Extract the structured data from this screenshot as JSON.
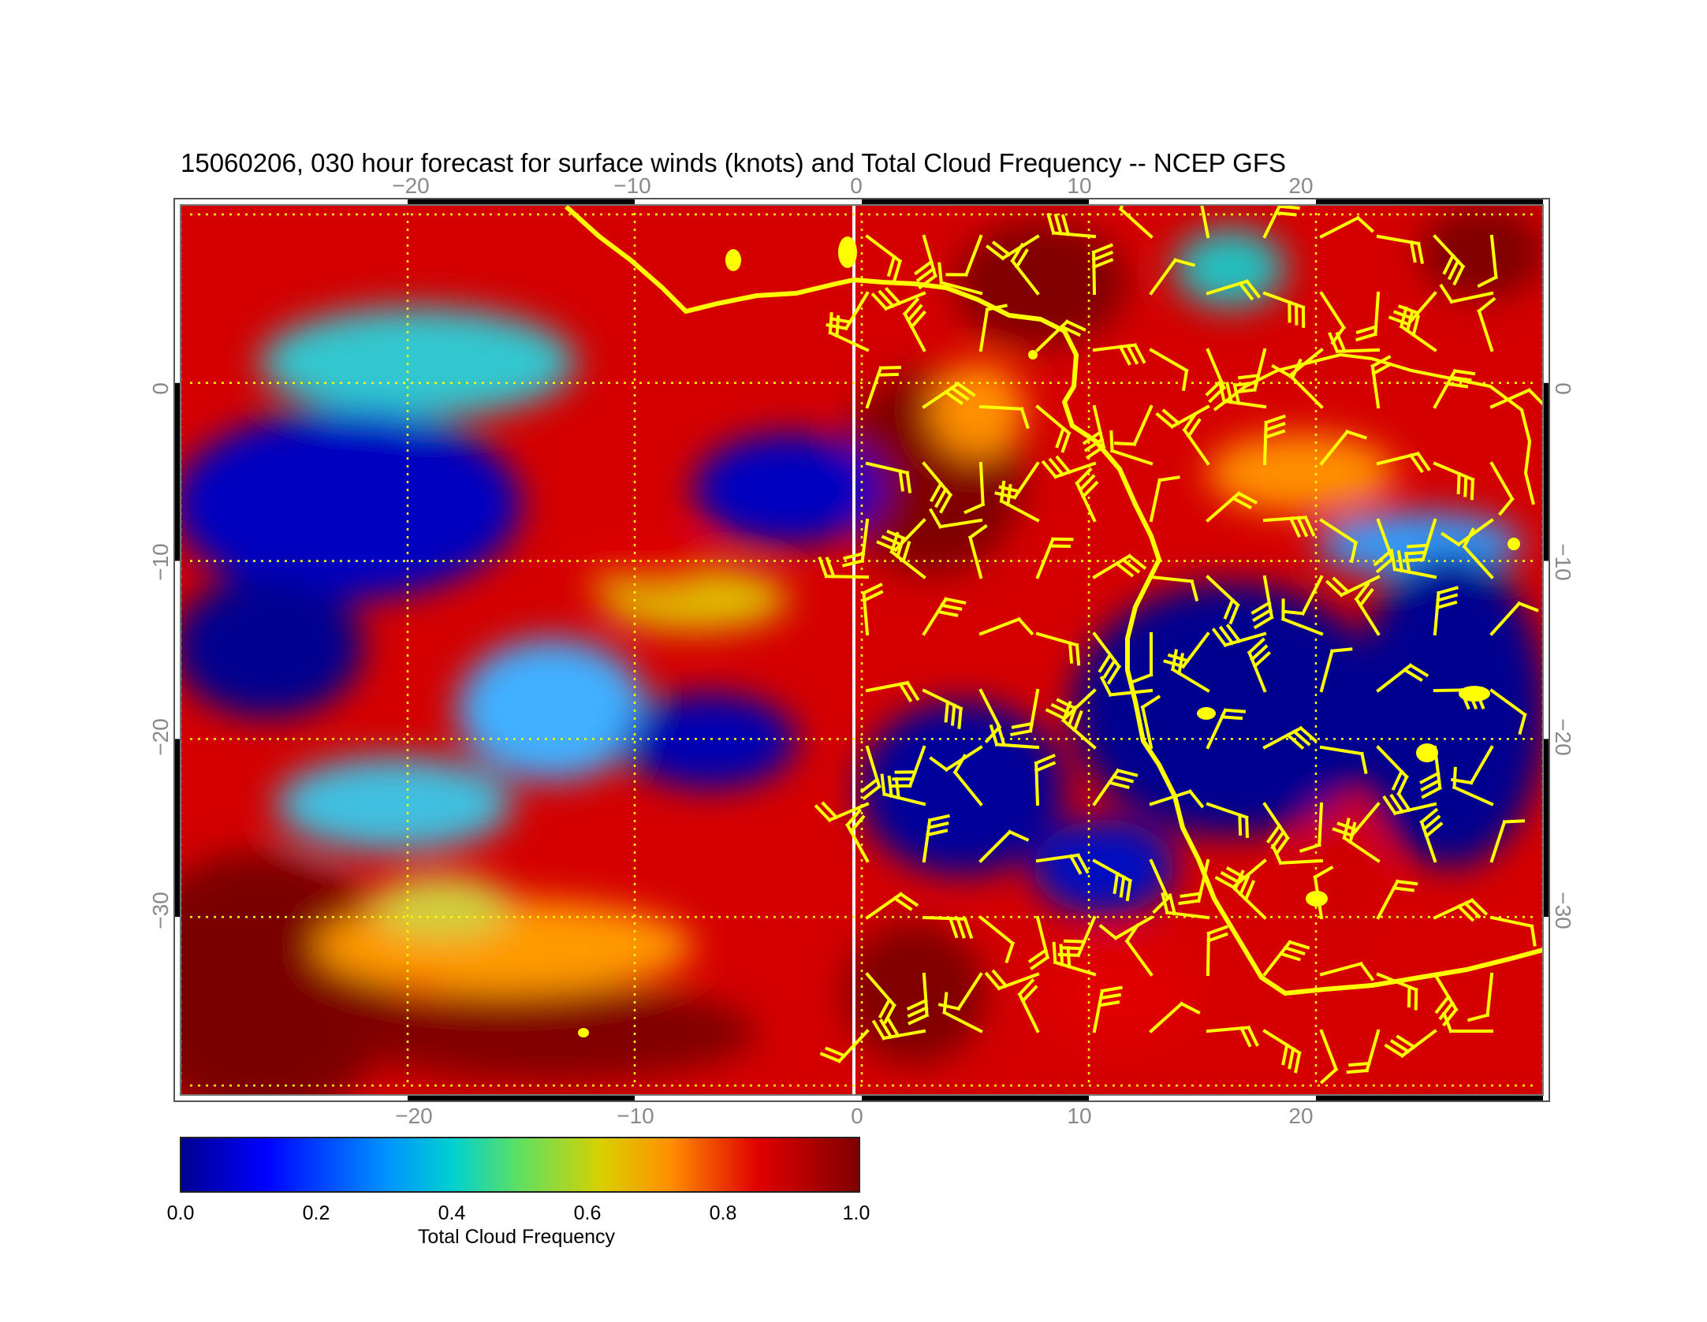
{
  "title": "15060206, 030 hour forecast for surface winds (knots) and Total Cloud Frequency -- NCEP GFS",
  "map": {
    "lon_ticks": [
      "−20",
      "−10",
      "0",
      "10",
      "20"
    ],
    "lat_ticks": [
      "0",
      "−10",
      "−20",
      "−30"
    ],
    "lon_range": [
      -30,
      30
    ],
    "lat_range": [
      -40,
      10
    ],
    "gridline_color": "#ffff00",
    "coastline_color": "#ffff00",
    "barb_color": "#ffff00",
    "meridian_color": "#ffffff"
  },
  "colorbar": {
    "label": "Total Cloud Frequency",
    "ticks": [
      "0.0",
      "0.2",
      "0.4",
      "0.6",
      "0.8",
      "1.0"
    ],
    "range": [
      0.0,
      1.0
    ],
    "colormap": "jet",
    "colors": [
      "#00008f",
      "#0000ff",
      "#0080ff",
      "#00ffff",
      "#80ff80",
      "#ffff00",
      "#ff8000",
      "#ff0000",
      "#800000"
    ]
  }
}
